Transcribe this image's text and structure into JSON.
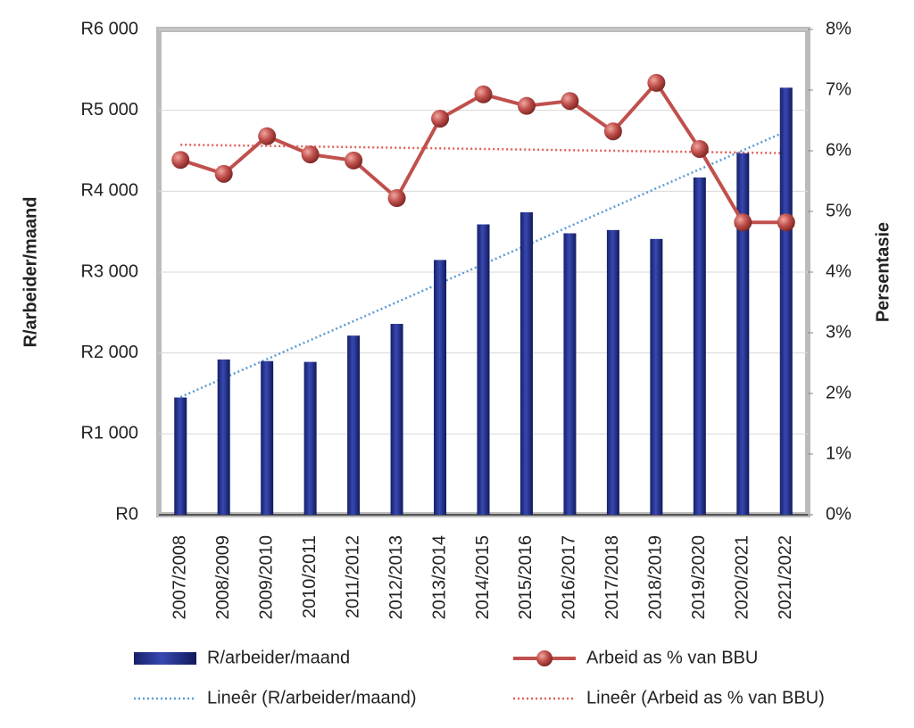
{
  "chart_data": {
    "type": "bar_line",
    "ylabel": "R/arbeider/maand",
    "y2label": "Persentasie",
    "categories": [
      "2007/2008",
      "2008/2009",
      "2009/2010",
      "2010/2011",
      "2011/2012",
      "2012/2013",
      "2013/2014",
      "2014/2015",
      "2015/2016",
      "2016/2017",
      "2017/2018",
      "2018/2019",
      "2019/2020",
      "2020/2021",
      "2021/2022"
    ],
    "series": [
      {
        "name": "R/arbeider/maand",
        "type": "bar",
        "color": "#1f2f8c",
        "axis": "y",
        "values": [
          1450,
          1920,
          1900,
          1890,
          2215,
          2360,
          3150,
          3590,
          3740,
          3480,
          3520,
          3410,
          4170,
          4470,
          5280
        ]
      },
      {
        "name": "Arbeid as % van BBU",
        "type": "line",
        "color": "#c0504d",
        "axis": "y2",
        "values": [
          5.85,
          5.62,
          6.24,
          5.94,
          5.84,
          5.22,
          6.53,
          6.93,
          6.74,
          6.82,
          6.32,
          7.12,
          6.03,
          4.82,
          4.82
        ]
      }
    ],
    "trendlines": [
      {
        "name": "Lineêr (R/arbeider/maand)",
        "color": "#5b9bd5",
        "axis": "y",
        "values": [
          1455,
          4740
        ]
      },
      {
        "name": "Lineêr (Arbeid as % van BBU)",
        "color": "#e0605a",
        "axis": "y2",
        "values": [
          6.1,
          5.96
        ]
      }
    ],
    "ylim": [
      0,
      6000
    ],
    "yticks": [
      {
        "value": 0,
        "label": "R0"
      },
      {
        "value": 1000,
        "label": "R1 000"
      },
      {
        "value": 2000,
        "label": "R2 000"
      },
      {
        "value": 3000,
        "label": "R3 000"
      },
      {
        "value": 4000,
        "label": "R4 000"
      },
      {
        "value": 5000,
        "label": "R5 000"
      },
      {
        "value": 6000,
        "label": "R6 000"
      }
    ],
    "y2lim": [
      0,
      8
    ],
    "y2ticks": [
      {
        "value": 0,
        "label": "0%"
      },
      {
        "value": 1,
        "label": "1%"
      },
      {
        "value": 2,
        "label": "2%"
      },
      {
        "value": 3,
        "label": "3%"
      },
      {
        "value": 4,
        "label": "4%"
      },
      {
        "value": 5,
        "label": "5%"
      },
      {
        "value": 6,
        "label": "6%"
      },
      {
        "value": 7,
        "label": "7%"
      },
      {
        "value": 8,
        "label": "8%"
      }
    ],
    "grid": true,
    "legend": "bottom"
  }
}
